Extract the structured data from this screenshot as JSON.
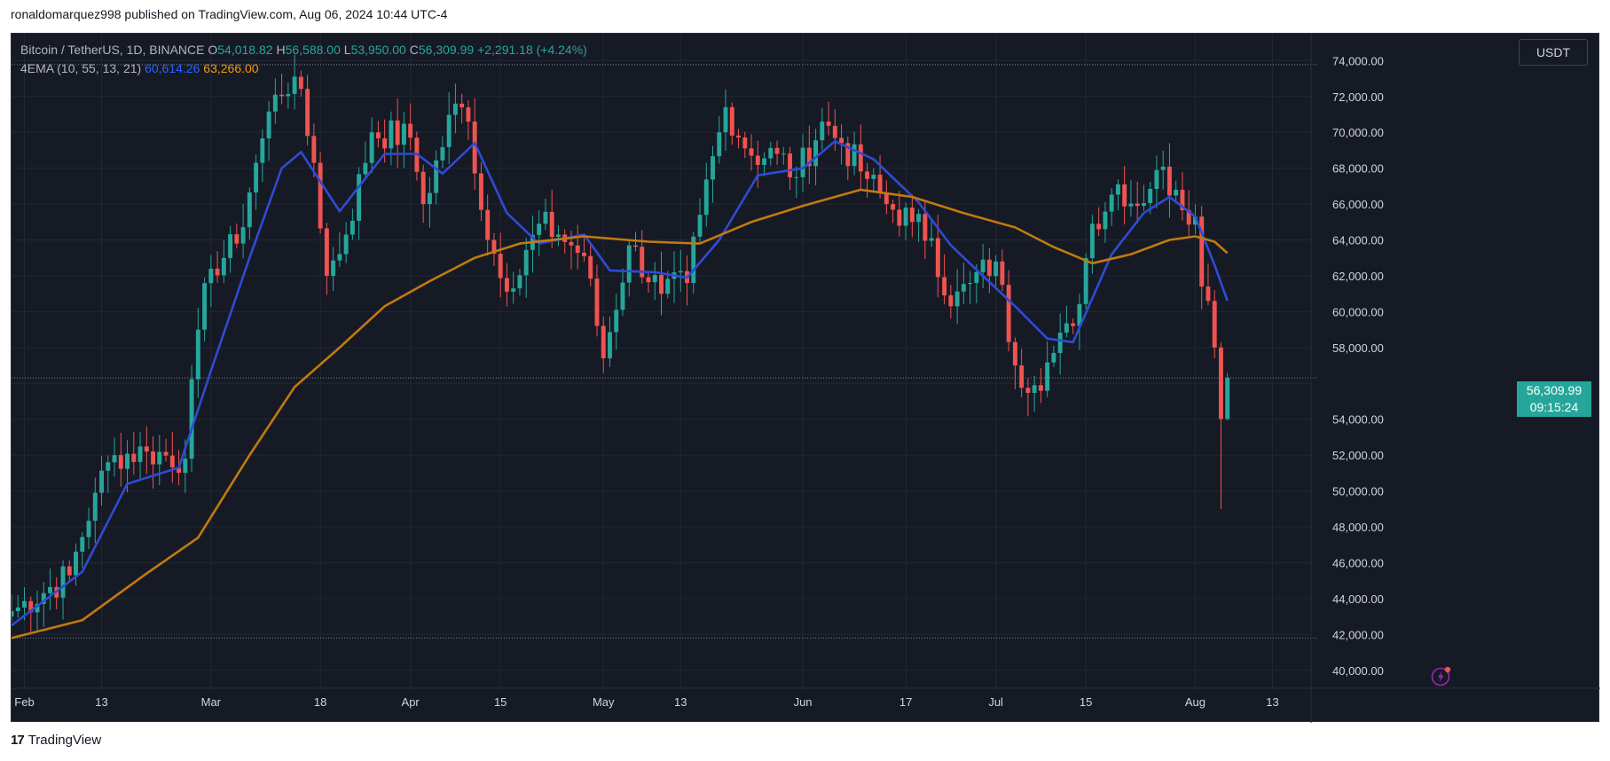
{
  "header": {
    "publisher_line": "ronaldomarquez998 published on TradingView.com, Aug 06, 2024 10:44 UTC-4"
  },
  "legend": {
    "symbol": "Bitcoin / TetherUS, 1D, BINANCE",
    "open_label": "O",
    "open": "54,018.82",
    "high_label": "H",
    "high": "56,588.00",
    "low_label": "L",
    "low": "53,950.00",
    "close_label": "C",
    "close": "56,309.99",
    "change": "+2,291.18 (+4.24%)",
    "indicator": "4EMA (10, 55, 13, 21)",
    "ema_fast": "60,614.26",
    "ema_slow": "63,266.00"
  },
  "currency_button": "USDT",
  "price_badge": {
    "price": "56,309.99",
    "countdown": "09:15:24"
  },
  "footer": {
    "logo_mark": "17",
    "brand": "TradingView"
  },
  "colors": {
    "background": "#161a25",
    "up": "#26a69a",
    "down": "#ef5350",
    "ema_fast": "#2f4bd4",
    "ema_slow": "#c17a10",
    "grid": "#232733",
    "axis_text": "#d1d4dc"
  },
  "icons": [
    "lightning-bolt-icon",
    "tradingview-logo-icon"
  ],
  "chart_data": {
    "type": "candlestick",
    "title": "",
    "xlabel": "",
    "ylabel": "",
    "ylim": [
      39000,
      75500
    ],
    "yticks": [
      40000,
      42000,
      44000,
      46000,
      48000,
      50000,
      52000,
      54000,
      56000,
      58000,
      60000,
      62000,
      64000,
      66000,
      68000,
      70000,
      72000,
      74000
    ],
    "ytick_labels": [
      "40,000.00",
      "42,000.00",
      "44,000.00",
      "46,000.00",
      "48,000.00",
      "50,000.00",
      "52,000.00",
      "54,000.00",
      "56,000.00",
      "58,000.00",
      "60,000.00",
      "62,000.00",
      "64,000.00",
      "66,000.00",
      "68,000.00",
      "70,000.00",
      "72,000.00",
      "74,000.00"
    ],
    "xlim": [
      "2024-01-30",
      "2024-08-19"
    ],
    "xticks": [
      {
        "date": "2024-02-01",
        "label": "Feb"
      },
      {
        "date": "2024-02-13",
        "label": "13"
      },
      {
        "date": "2024-03-01",
        "label": "Mar"
      },
      {
        "date": "2024-03-18",
        "label": "18"
      },
      {
        "date": "2024-04-01",
        "label": "Apr"
      },
      {
        "date": "2024-04-15",
        "label": "15"
      },
      {
        "date": "2024-05-01",
        "label": "May"
      },
      {
        "date": "2024-05-13",
        "label": "13"
      },
      {
        "date": "2024-06-01",
        "label": "Jun"
      },
      {
        "date": "2024-06-17",
        "label": "17"
      },
      {
        "date": "2024-07-01",
        "label": "Jul"
      },
      {
        "date": "2024-07-15",
        "label": "15"
      },
      {
        "date": "2024-08-01",
        "label": "Aug"
      },
      {
        "date": "2024-08-13",
        "label": "13"
      }
    ],
    "reference_lines": [
      73777,
      41800,
      56310
    ],
    "start_date": "2024-01-30",
    "close_path": [
      [
        "2024-01-30",
        43300
      ],
      [
        "2024-02-08",
        45300
      ],
      [
        "2024-02-12",
        49900
      ],
      [
        "2024-02-15",
        52000
      ],
      [
        "2024-02-20",
        52200
      ],
      [
        "2024-02-26",
        51800
      ],
      [
        "2024-02-28",
        59000
      ],
      [
        "2024-03-01",
        62400
      ],
      [
        "2024-03-05",
        63800
      ],
      [
        "2024-03-08",
        68300
      ],
      [
        "2024-03-11",
        72100
      ],
      [
        "2024-03-14",
        73100
      ],
      [
        "2024-03-17",
        68300
      ],
      [
        "2024-03-19",
        62000
      ],
      [
        "2024-03-22",
        64300
      ],
      [
        "2024-03-26",
        70000
      ],
      [
        "2024-04-01",
        69700
      ],
      [
        "2024-04-03",
        66000
      ],
      [
        "2024-04-08",
        71600
      ],
      [
        "2024-04-10",
        70600
      ],
      [
        "2024-04-13",
        64000
      ],
      [
        "2024-04-17",
        61300
      ],
      [
        "2024-04-21",
        64900
      ],
      [
        "2024-04-24",
        64300
      ],
      [
        "2024-04-28",
        63100
      ],
      [
        "2024-05-01",
        57400
      ],
      [
        "2024-05-05",
        63700
      ],
      [
        "2024-05-10",
        61000
      ],
      [
        "2024-05-14",
        61600
      ],
      [
        "2024-05-16",
        65400
      ],
      [
        "2024-05-20",
        71400
      ],
      [
        "2024-05-24",
        68700
      ],
      [
        "2024-05-28",
        68800
      ],
      [
        "2024-05-31",
        67500
      ],
      [
        "2024-06-04",
        70600
      ],
      [
        "2024-06-07",
        69400
      ],
      [
        "2024-06-11",
        67400
      ],
      [
        "2024-06-14",
        66000
      ],
      [
        "2024-06-18",
        65000
      ],
      [
        "2024-06-21",
        64100
      ],
      [
        "2024-06-24",
        60300
      ],
      [
        "2024-06-27",
        61600
      ],
      [
        "2024-07-01",
        62800
      ],
      [
        "2024-07-04",
        57000
      ],
      [
        "2024-07-07",
        55900
      ],
      [
        "2024-07-10",
        57700
      ],
      [
        "2024-07-13",
        59200
      ],
      [
        "2024-07-16",
        64900
      ],
      [
        "2024-07-20",
        67100
      ],
      [
        "2024-07-23",
        65900
      ],
      [
        "2024-07-26",
        67900
      ],
      [
        "2024-07-29",
        66800
      ],
      [
        "2024-08-01",
        65300
      ],
      [
        "2024-08-02",
        61400
      ],
      [
        "2024-08-03",
        60600
      ],
      [
        "2024-08-04",
        58000
      ],
      [
        "2024-08-05",
        54018
      ],
      [
        "2024-08-06",
        56310
      ]
    ],
    "series": [
      {
        "name": "4EMA (10, 55, 13, 21)",
        "values": [
          [
            "2024-01-30",
            42500
          ],
          [
            "2024-02-10",
            45500
          ],
          [
            "2024-02-17",
            50400
          ],
          [
            "2024-02-25",
            51300
          ],
          [
            "2024-03-01",
            56700
          ],
          [
            "2024-03-07",
            63000
          ],
          [
            "2024-03-12",
            68000
          ],
          [
            "2024-03-15",
            68900
          ],
          [
            "2024-03-21",
            65600
          ],
          [
            "2024-03-28",
            68800
          ],
          [
            "2024-04-02",
            68800
          ],
          [
            "2024-04-06",
            67700
          ],
          [
            "2024-04-11",
            69400
          ],
          [
            "2024-04-16",
            65500
          ],
          [
            "2024-04-21",
            63800
          ],
          [
            "2024-04-28",
            64300
          ],
          [
            "2024-05-02",
            62300
          ],
          [
            "2024-05-09",
            62200
          ],
          [
            "2024-05-14",
            61900
          ],
          [
            "2024-05-19",
            64000
          ],
          [
            "2024-05-25",
            67600
          ],
          [
            "2024-06-01",
            68000
          ],
          [
            "2024-06-06",
            69500
          ],
          [
            "2024-06-12",
            68500
          ],
          [
            "2024-06-19",
            66100
          ],
          [
            "2024-06-24",
            63700
          ],
          [
            "2024-06-29",
            62000
          ],
          [
            "2024-07-04",
            60300
          ],
          [
            "2024-07-09",
            58500
          ],
          [
            "2024-07-13",
            58300
          ],
          [
            "2024-07-19",
            63200
          ],
          [
            "2024-07-24",
            65500
          ],
          [
            "2024-07-28",
            66400
          ],
          [
            "2024-08-01",
            65300
          ],
          [
            "2024-08-04",
            62600
          ],
          [
            "2024-08-06",
            60614
          ]
        ]
      },
      {
        "name": "4EMA (10, 55, 13, 21)",
        "values": [
          [
            "2024-01-30",
            41800
          ],
          [
            "2024-02-10",
            42800
          ],
          [
            "2024-02-20",
            45400
          ],
          [
            "2024-02-28",
            47400
          ],
          [
            "2024-03-07",
            52000
          ],
          [
            "2024-03-14",
            55800
          ],
          [
            "2024-03-21",
            58000
          ],
          [
            "2024-03-28",
            60300
          ],
          [
            "2024-04-04",
            61700
          ],
          [
            "2024-04-11",
            63000
          ],
          [
            "2024-04-18",
            63800
          ],
          [
            "2024-04-28",
            64200
          ],
          [
            "2024-05-08",
            63900
          ],
          [
            "2024-05-16",
            63800
          ],
          [
            "2024-05-24",
            65000
          ],
          [
            "2024-06-01",
            65900
          ],
          [
            "2024-06-10",
            66800
          ],
          [
            "2024-06-18",
            66400
          ],
          [
            "2024-06-26",
            65500
          ],
          [
            "2024-07-04",
            64700
          ],
          [
            "2024-07-10",
            63600
          ],
          [
            "2024-07-16",
            62700
          ],
          [
            "2024-07-22",
            63200
          ],
          [
            "2024-07-28",
            64000
          ],
          [
            "2024-08-01",
            64200
          ],
          [
            "2024-08-04",
            63900
          ],
          [
            "2024-08-06",
            63266
          ]
        ]
      }
    ]
  }
}
